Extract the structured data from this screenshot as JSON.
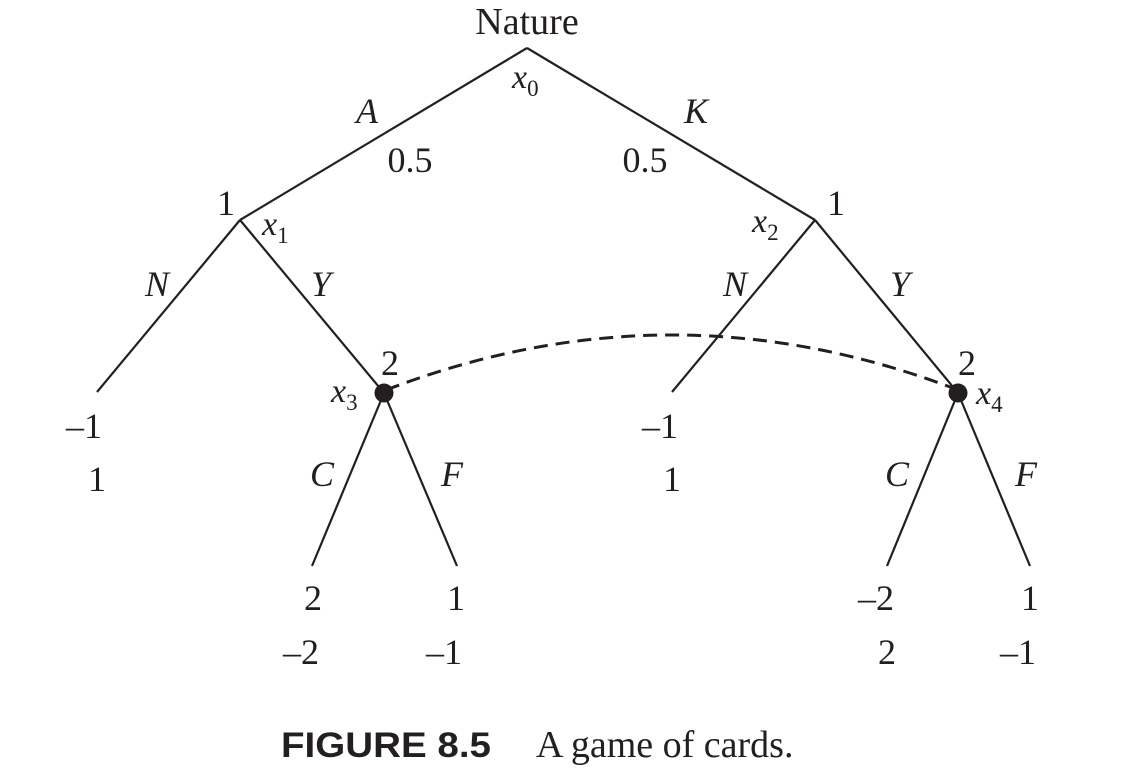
{
  "tree": {
    "root": {
      "label": "Nature",
      "name": "x",
      "sub": "0"
    },
    "branches": {
      "A": "A",
      "K": "K",
      "probA": "0.5",
      "probK": "0.5",
      "N1": "N",
      "Y1": "Y",
      "N2": "N",
      "Y2": "Y",
      "C3": "C",
      "F3": "F",
      "C4": "C",
      "F4": "F"
    },
    "nodes": {
      "x1": {
        "player": "1",
        "name": "x",
        "sub": "1"
      },
      "x2": {
        "player": "1",
        "name": "x",
        "sub": "2"
      },
      "x3": {
        "player": "2",
        "name": "x",
        "sub": "3"
      },
      "x4": {
        "player": "2",
        "name": "x",
        "sub": "4"
      }
    },
    "payoffs": {
      "x1N": [
        "–1",
        "1"
      ],
      "x2N": [
        "–1",
        "1"
      ],
      "x3C": [
        "2",
        "–2"
      ],
      "x3F": [
        "1",
        "–1"
      ],
      "x4C": [
        "–2",
        "2"
      ],
      "x4F": [
        "1",
        "–1"
      ]
    }
  },
  "caption": {
    "label": "FIGURE 8.5",
    "text": "A game of cards."
  }
}
